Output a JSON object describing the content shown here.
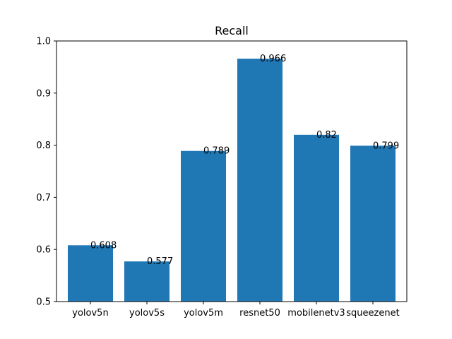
{
  "chart_data": {
    "type": "bar",
    "title": "Recall",
    "xlabel": "",
    "ylabel": "",
    "categories": [
      "yolov5n",
      "yolov5s",
      "yolov5m",
      "resnet50",
      "mobilenetv3",
      "squeezenet"
    ],
    "values": [
      0.608,
      0.577,
      0.789,
      0.966,
      0.82,
      0.799
    ],
    "value_labels": [
      "0.608",
      "0.577",
      "0.789",
      "0.966",
      "0.82",
      "0.799"
    ],
    "ylim": [
      0.5,
      1.0
    ],
    "yticks": [
      "0.5",
      "0.6",
      "0.7",
      "0.8",
      "0.9",
      "1.0"
    ],
    "grid": false,
    "legend": "none",
    "bar_color": "#1f77b4"
  }
}
